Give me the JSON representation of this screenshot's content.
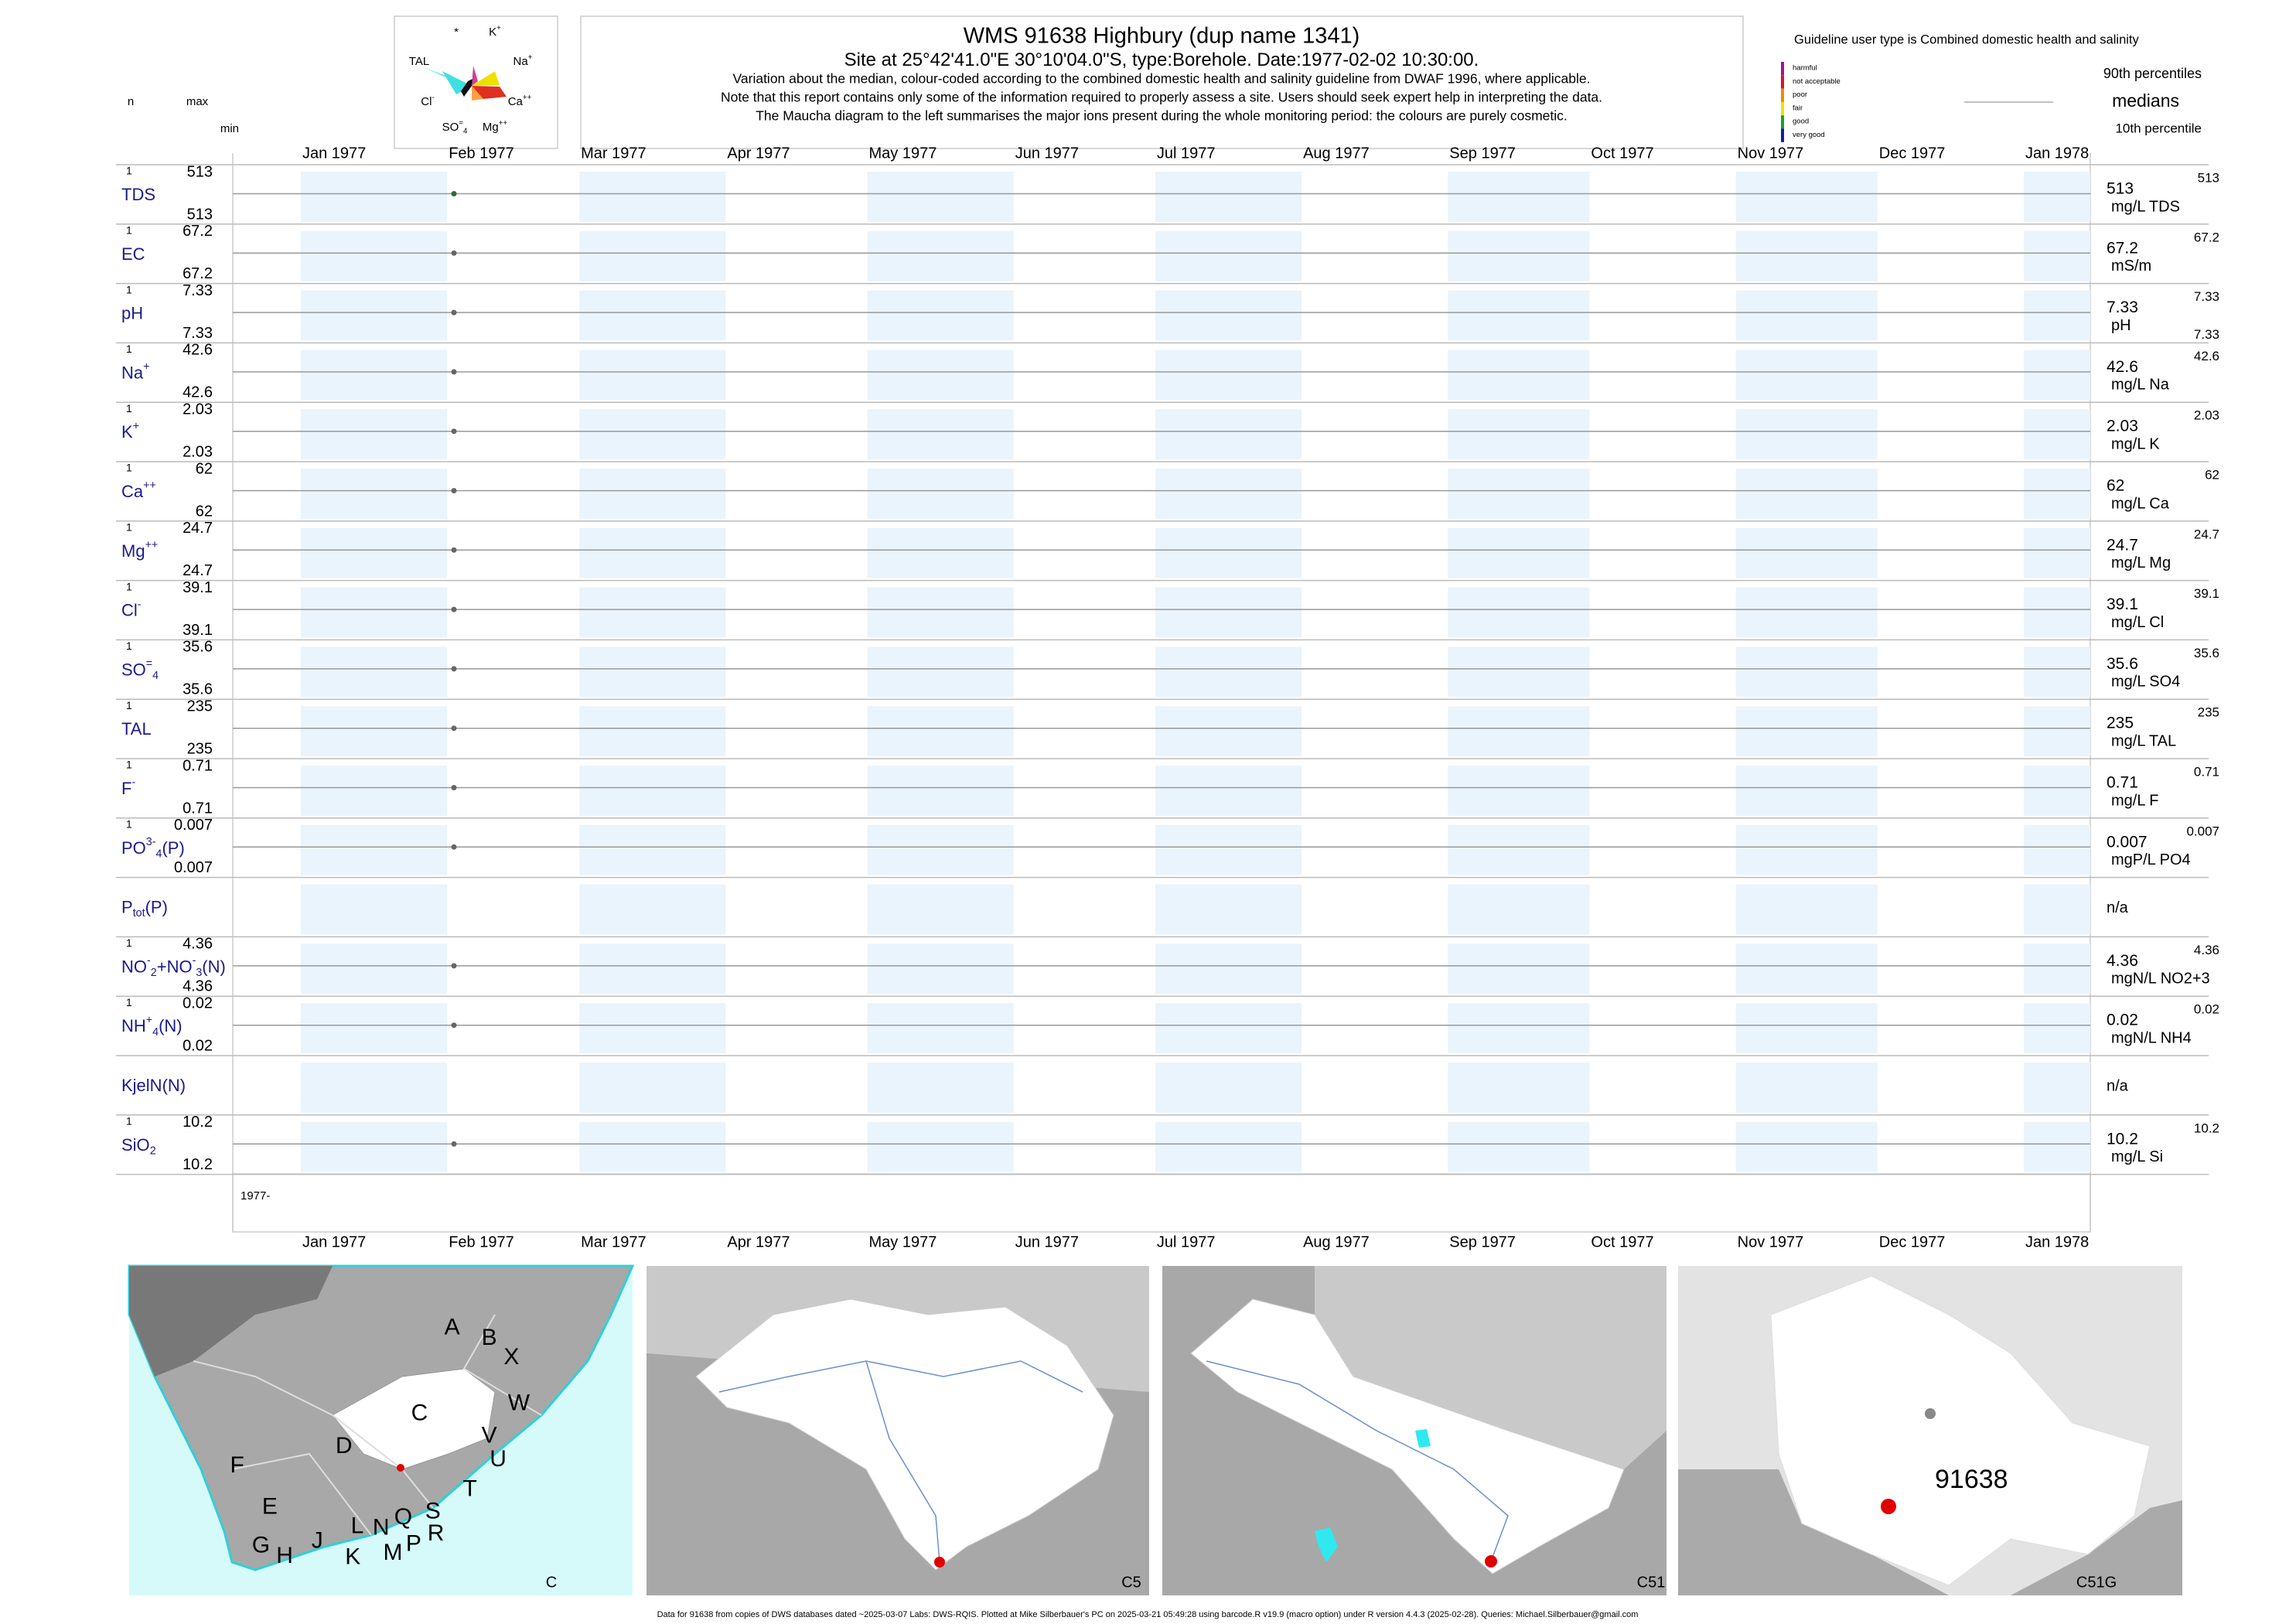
{
  "header": {
    "title": "WMS 91638  Highbury (dup name 1341)",
    "site": "Site at 25°42'41.0\"E 30°10'04.0\"S, type:Borehole. Date:",
    "date": "1977-02-02 10:30:00",
    "end": ".",
    "notes": [
      "Variation about the median,  colour-coded according to the combined domestic health and salinity guideline from DWAF 1996, where applicable.",
      "Note that this report contains only some of the information required to properly assess a site. Users should seek expert help in interpreting the data.",
      "The Maucha diagram to the left summarises the major ions present during the whole monitoring period: the colours are purely cosmetic."
    ]
  },
  "columns": {
    "n": "n",
    "max": "max",
    "min": "min"
  },
  "maucha": [
    [
      {
        "text": "*"
      }
    ],
    [
      {
        "text": "K"
      },
      {
        "sup": "+"
      }
    ],
    [
      {
        "text": "TAL"
      }
    ],
    [
      {
        "text": "Na"
      },
      {
        "sup": "+"
      }
    ],
    [
      {
        "text": "Cl"
      },
      {
        "sup": "-"
      }
    ],
    [
      {
        "text": "Ca"
      },
      {
        "sup": "++"
      }
    ],
    [
      {
        "text": "SO"
      },
      {
        "sup": "="
      },
      {
        "sub": "4"
      }
    ],
    [
      {
        "text": "Mg"
      },
      {
        "sup": "++"
      }
    ]
  ],
  "legend": {
    "guideline": "Guideline user type is Combined domestic health and salinity",
    "classes": [
      {
        "name": "harmful",
        "color": "#a0168c"
      },
      {
        "name": "not acceptable",
        "color": "#e0102a"
      },
      {
        "name": "poor",
        "color": "#f08a00"
      },
      {
        "name": "fair",
        "color": "#f0e000"
      },
      {
        "name": "good",
        "color": "#1aa02a"
      },
      {
        "name": "very good",
        "color": "#1020a0"
      }
    ],
    "p90": "90th percentiles",
    "medians": "medians",
    "p10": "10th percentile"
  },
  "months": [
    "Jan 1977",
    "Feb 1977",
    "Mar 1977",
    "Apr 1977",
    "May 1977",
    "Jun 1977",
    "Jul 1977",
    "Aug 1977",
    "Sep 1977",
    "Oct 1977",
    "Nov 1977",
    "Dec 1977",
    "Jan 1978"
  ],
  "year_label": "1977-",
  "rows": [
    {
      "label": [
        {
          "text": "TDS"
        }
      ],
      "n": 1,
      "max": 513,
      "min": 513,
      "median": 513,
      "unit": "mg/L TDS",
      "p90": 513,
      "color": "#2e6b34"
    },
    {
      "label": [
        {
          "text": "EC"
        }
      ],
      "n": 1,
      "max": 67.2,
      "min": 67.2,
      "median": 67.2,
      "unit": "mS/m",
      "p90": 67.2,
      "color": "#666666"
    },
    {
      "label": [
        {
          "text": "pH"
        }
      ],
      "n": 1,
      "max": 7.33,
      "min": 7.33,
      "median": 7.33,
      "unit": "pH",
      "p90": 7.33,
      "p10": 7.33,
      "color": "#666666"
    },
    {
      "label": [
        {
          "text": "Na"
        },
        {
          "sup": "+"
        }
      ],
      "n": 1,
      "max": 42.6,
      "min": 42.6,
      "median": 42.6,
      "unit": "mg/L Na",
      "p90": 42.6,
      "color": "#666666"
    },
    {
      "label": [
        {
          "text": "K"
        },
        {
          "sup": "+"
        }
      ],
      "n": 1,
      "max": 2.03,
      "min": 2.03,
      "median": 2.03,
      "unit": "mg/L K",
      "p90": 2.03,
      "color": "#666666"
    },
    {
      "label": [
        {
          "text": "Ca"
        },
        {
          "sup": "++"
        }
      ],
      "n": 1,
      "max": 62,
      "min": 62,
      "median": 62,
      "unit": "mg/L Ca",
      "p90": 62,
      "color": "#666666"
    },
    {
      "label": [
        {
          "text": "Mg"
        },
        {
          "sup": "++"
        }
      ],
      "n": 1,
      "max": 24.7,
      "min": 24.7,
      "median": 24.7,
      "unit": "mg/L Mg",
      "p90": 24.7,
      "color": "#666666"
    },
    {
      "label": [
        {
          "text": "Cl"
        },
        {
          "sup": "-"
        }
      ],
      "n": 1,
      "max": 39.1,
      "min": 39.1,
      "median": 39.1,
      "unit": "mg/L Cl",
      "p90": 39.1,
      "color": "#666666"
    },
    {
      "label": [
        {
          "text": "SO"
        },
        {
          "sup": "="
        },
        {
          "sub": "4"
        }
      ],
      "n": 1,
      "max": 35.6,
      "min": 35.6,
      "median": 35.6,
      "unit": "mg/L SO4",
      "p90": 35.6,
      "color": "#666666"
    },
    {
      "label": [
        {
          "text": "TAL"
        }
      ],
      "n": 1,
      "max": 235,
      "min": 235,
      "median": 235,
      "unit": "mg/L TAL",
      "p90": 235,
      "color": "#666666"
    },
    {
      "label": [
        {
          "text": "F"
        },
        {
          "sup": "-"
        }
      ],
      "n": 1,
      "max": 0.71,
      "min": 0.71,
      "median": 0.71,
      "unit": "mg/L F",
      "p90": 0.71,
      "color": "#666666"
    },
    {
      "label": [
        {
          "text": "PO"
        },
        {
          "sup": "3-"
        },
        {
          "sub": "4"
        },
        {
          "text": "(P)"
        }
      ],
      "n": 1,
      "max": 0.007,
      "min": 0.007,
      "median": 0.007,
      "unit": "mgP/L PO4",
      "p90": 0.007,
      "color": "#666666"
    },
    {
      "label": [
        {
          "text": "P"
        },
        {
          "sub": "tot"
        },
        {
          "text": "(P)"
        }
      ],
      "na": "n/a"
    },
    {
      "label": [
        {
          "text": "NO"
        },
        {
          "sup": "-"
        },
        {
          "sub": "2"
        },
        {
          "text": "+NO"
        },
        {
          "sup": "-"
        },
        {
          "sub": "3"
        },
        {
          "text": "(N)"
        }
      ],
      "n": 1,
      "max": 4.36,
      "min": 4.36,
      "median": 4.36,
      "unit": "mgN/L NO2+3",
      "p90": 4.36,
      "color": "#666666"
    },
    {
      "label": [
        {
          "text": "NH"
        },
        {
          "sup": "+"
        },
        {
          "sub": "4"
        },
        {
          "text": "(N)"
        }
      ],
      "n": 1,
      "max": 0.02,
      "min": 0.02,
      "median": 0.02,
      "unit": "mgN/L NH4",
      "p90": 0.02,
      "color": "#666666"
    },
    {
      "label": [
        {
          "text": "KjelN(N)"
        }
      ],
      "na": "n/a"
    },
    {
      "label": [
        {
          "text": "SiO"
        },
        {
          "sub": "2"
        }
      ],
      "n": 1,
      "max": 10.2,
      "min": 10.2,
      "median": 10.2,
      "unit": "mg/L Si",
      "p90": 10.2,
      "color": "#666666"
    }
  ],
  "maps": {
    "letters": [
      "A",
      "B",
      "X",
      "C",
      "W",
      "V",
      "U",
      "D",
      "T",
      "F",
      "E",
      "S",
      "Q",
      "L",
      "N",
      "R",
      "P",
      "J",
      "K",
      "M",
      "G",
      "H"
    ],
    "panels": [
      "C",
      "C5",
      "C51",
      "C51G"
    ],
    "site": "91638"
  },
  "footer": "Data for 91638 from copies of DWS databases dated ~2025-03-07 Labs: DWS-RQIS. Plotted at Mike Silberbauer's PC on 2025-03-21 05:49:28 using barcode.R v19.9 (macro option) under R version 4.4.3 (2025-02-28). Queries: Michael.Silberbauer@gmail.com"
}
